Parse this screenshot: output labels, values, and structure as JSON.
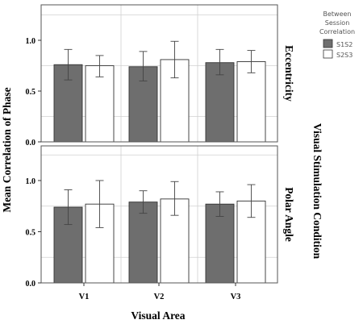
{
  "chart_data": {
    "type": "bar",
    "ylabel": "Mean Correlation of Phase",
    "xlabel": "Visual Area",
    "right_label": "Visual Stimulation Condition",
    "categories": [
      "V1",
      "V2",
      "V3"
    ],
    "ylim": [
      0,
      1.3
    ],
    "yticks": [
      "0.0",
      "0.5",
      "1.0"
    ],
    "ytick_values": [
      0,
      0.5,
      1.0
    ],
    "grid": true,
    "legend": {
      "title_lines": [
        "Between",
        "Session",
        "Correlation"
      ],
      "placement": "top-right",
      "entries": [
        {
          "label": "S1S2",
          "color": "#6e6e6e"
        },
        {
          "label": "S2S3",
          "color": "#ffffff"
        }
      ]
    },
    "panels": [
      {
        "label": "Eccentricity",
        "series": [
          {
            "name": "S1S2",
            "values": [
              0.76,
              0.74,
              0.78
            ],
            "err_low": [
              0.61,
              0.6,
              0.66
            ],
            "err_high": [
              0.91,
              0.89,
              0.91
            ]
          },
          {
            "name": "S2S3",
            "values": [
              0.75,
              0.81,
              0.79
            ],
            "err_low": [
              0.64,
              0.63,
              0.68
            ],
            "err_high": [
              0.85,
              0.99,
              0.9
            ]
          }
        ]
      },
      {
        "label": "Polar Angle",
        "series": [
          {
            "name": "S1S2",
            "values": [
              0.74,
              0.79,
              0.77
            ],
            "err_low": [
              0.57,
              0.68,
              0.65
            ],
            "err_high": [
              0.91,
              0.9,
              0.89
            ]
          },
          {
            "name": "S2S3",
            "values": [
              0.77,
              0.82,
              0.8
            ],
            "err_low": [
              0.54,
              0.66,
              0.64
            ],
            "err_high": [
              1.0,
              0.99,
              0.96
            ]
          }
        ]
      }
    ]
  }
}
